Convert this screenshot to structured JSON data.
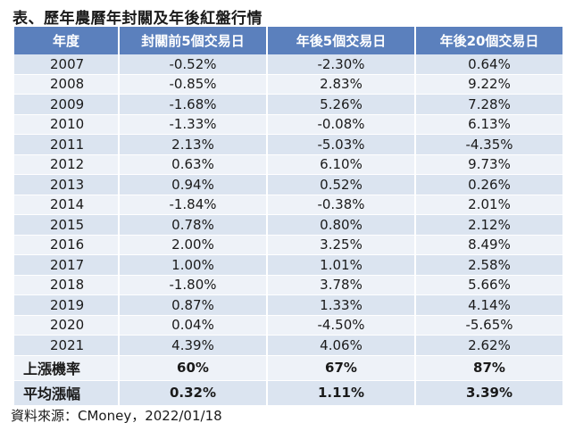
{
  "title": "表、歷年農曆年封關及年後紅盤行情",
  "table": {
    "headers": [
      "年度",
      "封關前5個交易日",
      "年後5個交易日",
      "年後20個交易日"
    ],
    "rows": [
      [
        "2007",
        "-0.52%",
        "-2.30%",
        "0.64%"
      ],
      [
        "2008",
        "-0.85%",
        "2.83%",
        "9.22%"
      ],
      [
        "2009",
        "-1.68%",
        "5.26%",
        "7.28%"
      ],
      [
        "2010",
        "-1.33%",
        "-0.08%",
        "6.13%"
      ],
      [
        "2011",
        "2.13%",
        "-5.03%",
        "-4.35%"
      ],
      [
        "2012",
        "0.63%",
        "6.10%",
        "9.73%"
      ],
      [
        "2013",
        "0.94%",
        "0.52%",
        "0.26%"
      ],
      [
        "2014",
        "-1.84%",
        "-0.38%",
        "2.01%"
      ],
      [
        "2015",
        "0.78%",
        "0.80%",
        "2.12%"
      ],
      [
        "2016",
        "2.00%",
        "3.25%",
        "8.49%"
      ],
      [
        "2017",
        "1.00%",
        "1.01%",
        "2.58%"
      ],
      [
        "2018",
        "-1.80%",
        "3.78%",
        "5.66%"
      ],
      [
        "2019",
        "0.87%",
        "1.33%",
        "4.14%"
      ],
      [
        "2020",
        "0.04%",
        "-4.50%",
        "-5.65%"
      ],
      [
        "2021",
        "4.39%",
        "4.06%",
        "2.62%"
      ]
    ],
    "summary": [
      [
        "上漲機率",
        "60%",
        "67%",
        "87%"
      ],
      [
        "平均漲幅",
        "0.32%",
        "1.11%",
        "3.39%"
      ]
    ]
  },
  "source": "資料來源：CMoney，2022/01/18"
}
